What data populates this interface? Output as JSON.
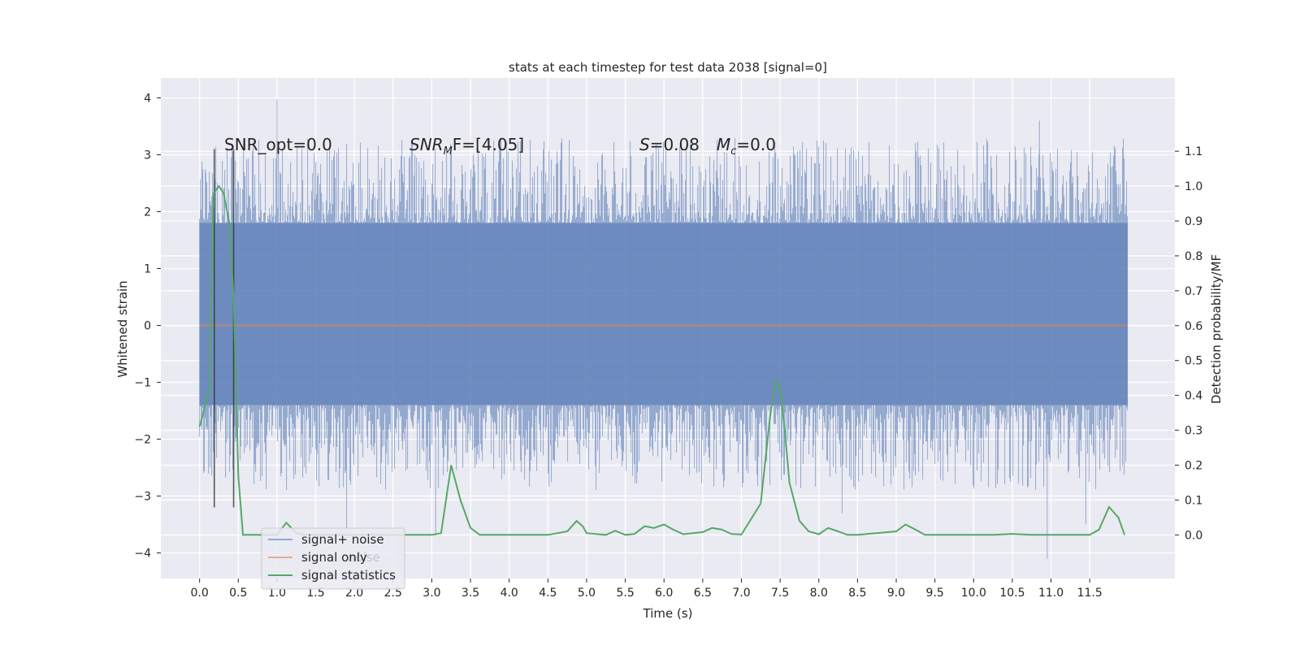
{
  "chart_data": {
    "type": "line",
    "title": "stats at each timestep for test data 2038 [signal=0]",
    "xlabel": "Time (s)",
    "ylabel_left": "Whitened strain",
    "ylabel_right": "Detection probability/MF",
    "xlim": [
      -0.5,
      12.6
    ],
    "ylim_left": [
      -4.45,
      4.35
    ],
    "ylim_right": [
      -0.125,
      1.31
    ],
    "x_ticks": [
      "0.0",
      "0.5",
      "1.0",
      "1.5",
      "2.0",
      "2.5",
      "3.0",
      "3.5",
      "4.0",
      "4.5",
      "5.0",
      "5.5",
      "6.0",
      "6.5",
      "7.0",
      "7.5",
      "8.0",
      "8.5",
      "9.0",
      "9.5",
      "10.0",
      "10.5",
      "11.0",
      "11.5"
    ],
    "y_ticks_left": [
      "−4",
      "−3",
      "−2",
      "−1",
      "0",
      "1",
      "2",
      "3",
      "4"
    ],
    "y_ticks_right": [
      "0.0",
      "0.1",
      "0.2",
      "0.3",
      "0.4",
      "0.5",
      "0.6",
      "0.7",
      "0.8",
      "0.9",
      "1.0",
      "1.1"
    ],
    "grid": true,
    "legend_position": "lower-left",
    "annotations": {
      "snr_opt": "SNR_opt=0.0",
      "snr_mf": "SNR",
      "snr_mf_sub": "M",
      "snr_mf_tail": "F=[4.05]",
      "stat_s": "S",
      "stat_s_tail": "=0.08",
      "stat_mc": "M",
      "stat_mc_sub": "c",
      "stat_mc_tail": "=0.0",
      "noise_ghost": "noise"
    },
    "vlines_x": [
      0.19,
      0.44
    ],
    "noise_band": {
      "x_start": 0.0,
      "x_end": 11.99,
      "dense_min": -1.4,
      "dense_max": 1.8,
      "spike_min": -4.1,
      "spike_max": 3.97
    },
    "series": [
      {
        "name": "signal+ noise",
        "color": "#4c72b0",
        "axis": "left"
      },
      {
        "name": "signal only",
        "color": "#dd8452",
        "axis": "left",
        "x": [
          0.0,
          11.99
        ],
        "y": [
          0.0,
          0.0
        ]
      },
      {
        "name": "signal statistics",
        "color": "#55a868",
        "axis": "right",
        "x": [
          0.0,
          0.13,
          0.18,
          0.25,
          0.31,
          0.38,
          0.44,
          0.5,
          0.56,
          0.63,
          0.75,
          1.0,
          1.12,
          1.25,
          1.37,
          1.5,
          2.0,
          2.5,
          3.0,
          3.12,
          3.25,
          3.37,
          3.5,
          3.62,
          3.75,
          4.0,
          4.5,
          4.75,
          4.87,
          4.95,
          5.0,
          5.25,
          5.37,
          5.5,
          5.62,
          5.75,
          5.87,
          6.0,
          6.12,
          6.25,
          6.5,
          6.62,
          6.75,
          6.87,
          7.0,
          7.25,
          7.37,
          7.44,
          7.5,
          7.56,
          7.62,
          7.75,
          7.87,
          8.0,
          8.12,
          8.25,
          8.37,
          8.5,
          9.0,
          9.12,
          9.25,
          9.37,
          9.5,
          10.0,
          10.25,
          10.5,
          10.75,
          11.0,
          11.25,
          11.5,
          11.62,
          11.75,
          11.87,
          11.95
        ],
        "y": [
          0.31,
          0.42,
          0.98,
          1.0,
          0.98,
          0.9,
          0.68,
          0.17,
          0.0,
          0.0,
          0.0,
          0.0,
          0.035,
          0.005,
          0.0,
          0.0,
          0.0,
          0.0,
          0.0,
          0.005,
          0.2,
          0.1,
          0.02,
          0.0,
          0.0,
          0.0,
          0.0,
          0.01,
          0.04,
          0.025,
          0.005,
          0.0,
          0.012,
          0.0,
          0.003,
          0.025,
          0.02,
          0.03,
          0.015,
          0.002,
          0.008,
          0.02,
          0.015,
          0.003,
          0.001,
          0.09,
          0.34,
          0.44,
          0.42,
          0.3,
          0.15,
          0.04,
          0.01,
          0.002,
          0.02,
          0.01,
          0.0,
          0.0,
          0.01,
          0.03,
          0.015,
          0.0,
          0.0,
          0.0,
          0.0,
          0.003,
          0.0,
          0.0,
          0.0,
          0.0,
          0.015,
          0.08,
          0.05,
          0.0
        ]
      }
    ]
  }
}
